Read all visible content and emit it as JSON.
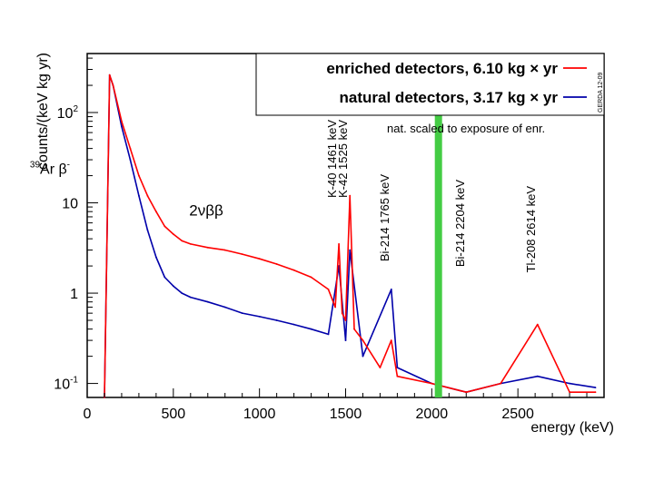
{
  "chart_data": {
    "type": "line",
    "title": "",
    "xlabel": "energy (keV)",
    "ylabel": "counts/(keV kg yr)",
    "xlim": [
      0,
      3000
    ],
    "ylim": [
      0.07,
      450
    ],
    "yscale": "log",
    "x_ticks": [
      0,
      500,
      1000,
      1500,
      2000,
      2500
    ],
    "x_tick_labels": [
      "0",
      "500",
      "1000",
      "1500",
      "2000",
      "2500"
    ],
    "y_ticks": [
      0.1,
      1,
      10,
      100
    ],
    "y_tick_labels": [
      {
        "base": "10",
        "exp": "-1"
      },
      {
        "base": "1",
        "exp": ""
      },
      {
        "base": "10",
        "exp": ""
      },
      {
        "base": "10",
        "exp": "2"
      }
    ],
    "series": [
      {
        "name": "enriched detectors,  6.10 kg × yr",
        "color": "#ff0000",
        "x": [
          100,
          130,
          150,
          200,
          250,
          300,
          350,
          400,
          450,
          500,
          550,
          600,
          700,
          800,
          900,
          1000,
          1100,
          1200,
          1300,
          1400,
          1440,
          1461,
          1480,
          1500,
          1525,
          1550,
          1600,
          1700,
          1765,
          1800,
          2000,
          2200,
          2400,
          2614,
          2800,
          2950
        ],
        "y": [
          0.07,
          260,
          200,
          80,
          40,
          20,
          12,
          8,
          5.5,
          4.5,
          3.8,
          3.5,
          3.2,
          3.0,
          2.7,
          2.4,
          2.1,
          1.8,
          1.5,
          1.1,
          0.7,
          3.5,
          0.6,
          0.5,
          12,
          0.4,
          0.3,
          0.15,
          0.3,
          0.12,
          0.1,
          0.08,
          0.1,
          0.45,
          0.08,
          0.08
        ]
      },
      {
        "name": "natural detectors,  3.17 kg × yr",
        "color": "#0000aa",
        "x": [
          100,
          130,
          150,
          200,
          250,
          300,
          350,
          400,
          450,
          500,
          550,
          600,
          700,
          800,
          900,
          1000,
          1100,
          1200,
          1300,
          1400,
          1461,
          1500,
          1525,
          1600,
          1765,
          1800,
          2000,
          2200,
          2400,
          2614,
          2800,
          2950
        ],
        "y": [
          0.07,
          260,
          200,
          70,
          30,
          12,
          5,
          2.5,
          1.5,
          1.2,
          1.0,
          0.9,
          0.8,
          0.7,
          0.6,
          0.55,
          0.5,
          0.45,
          0.4,
          0.35,
          2.0,
          0.3,
          3.0,
          0.2,
          1.1,
          0.15,
          0.1,
          0.08,
          0.1,
          0.12,
          0.1,
          0.09
        ]
      }
    ],
    "legend": {
      "position": "top-right",
      "entries": [
        {
          "label": "enriched detectors,  6.10 kg × yr",
          "color": "#ff0000"
        },
        {
          "label": "natural detectors,  3.17 kg × yr",
          "color": "#0000aa"
        }
      ]
    },
    "blinded_window": {
      "center_kev": 2039,
      "color": "#44cc44"
    },
    "annotations": [
      {
        "text": "nat. scaled to exposure of enr."
      },
      {
        "text": "GERDA 12-09"
      },
      {
        "text": "K-40  1461 keV",
        "x": 1461
      },
      {
        "text": "K-42  1525 keV",
        "x": 1525
      },
      {
        "text": "Bi-214  1765 keV",
        "x": 1765
      },
      {
        "text": "Bi-214  2204 keV",
        "x": 2204
      },
      {
        "text": "Tl-208  2614 keV",
        "x": 2614
      },
      {
        "text": "2νββ",
        "x": 750,
        "y": 5.5
      },
      {
        "sup": "39",
        "text": "Ar  β",
        "sup2": "-",
        "x": 300,
        "y": 22
      }
    ]
  }
}
